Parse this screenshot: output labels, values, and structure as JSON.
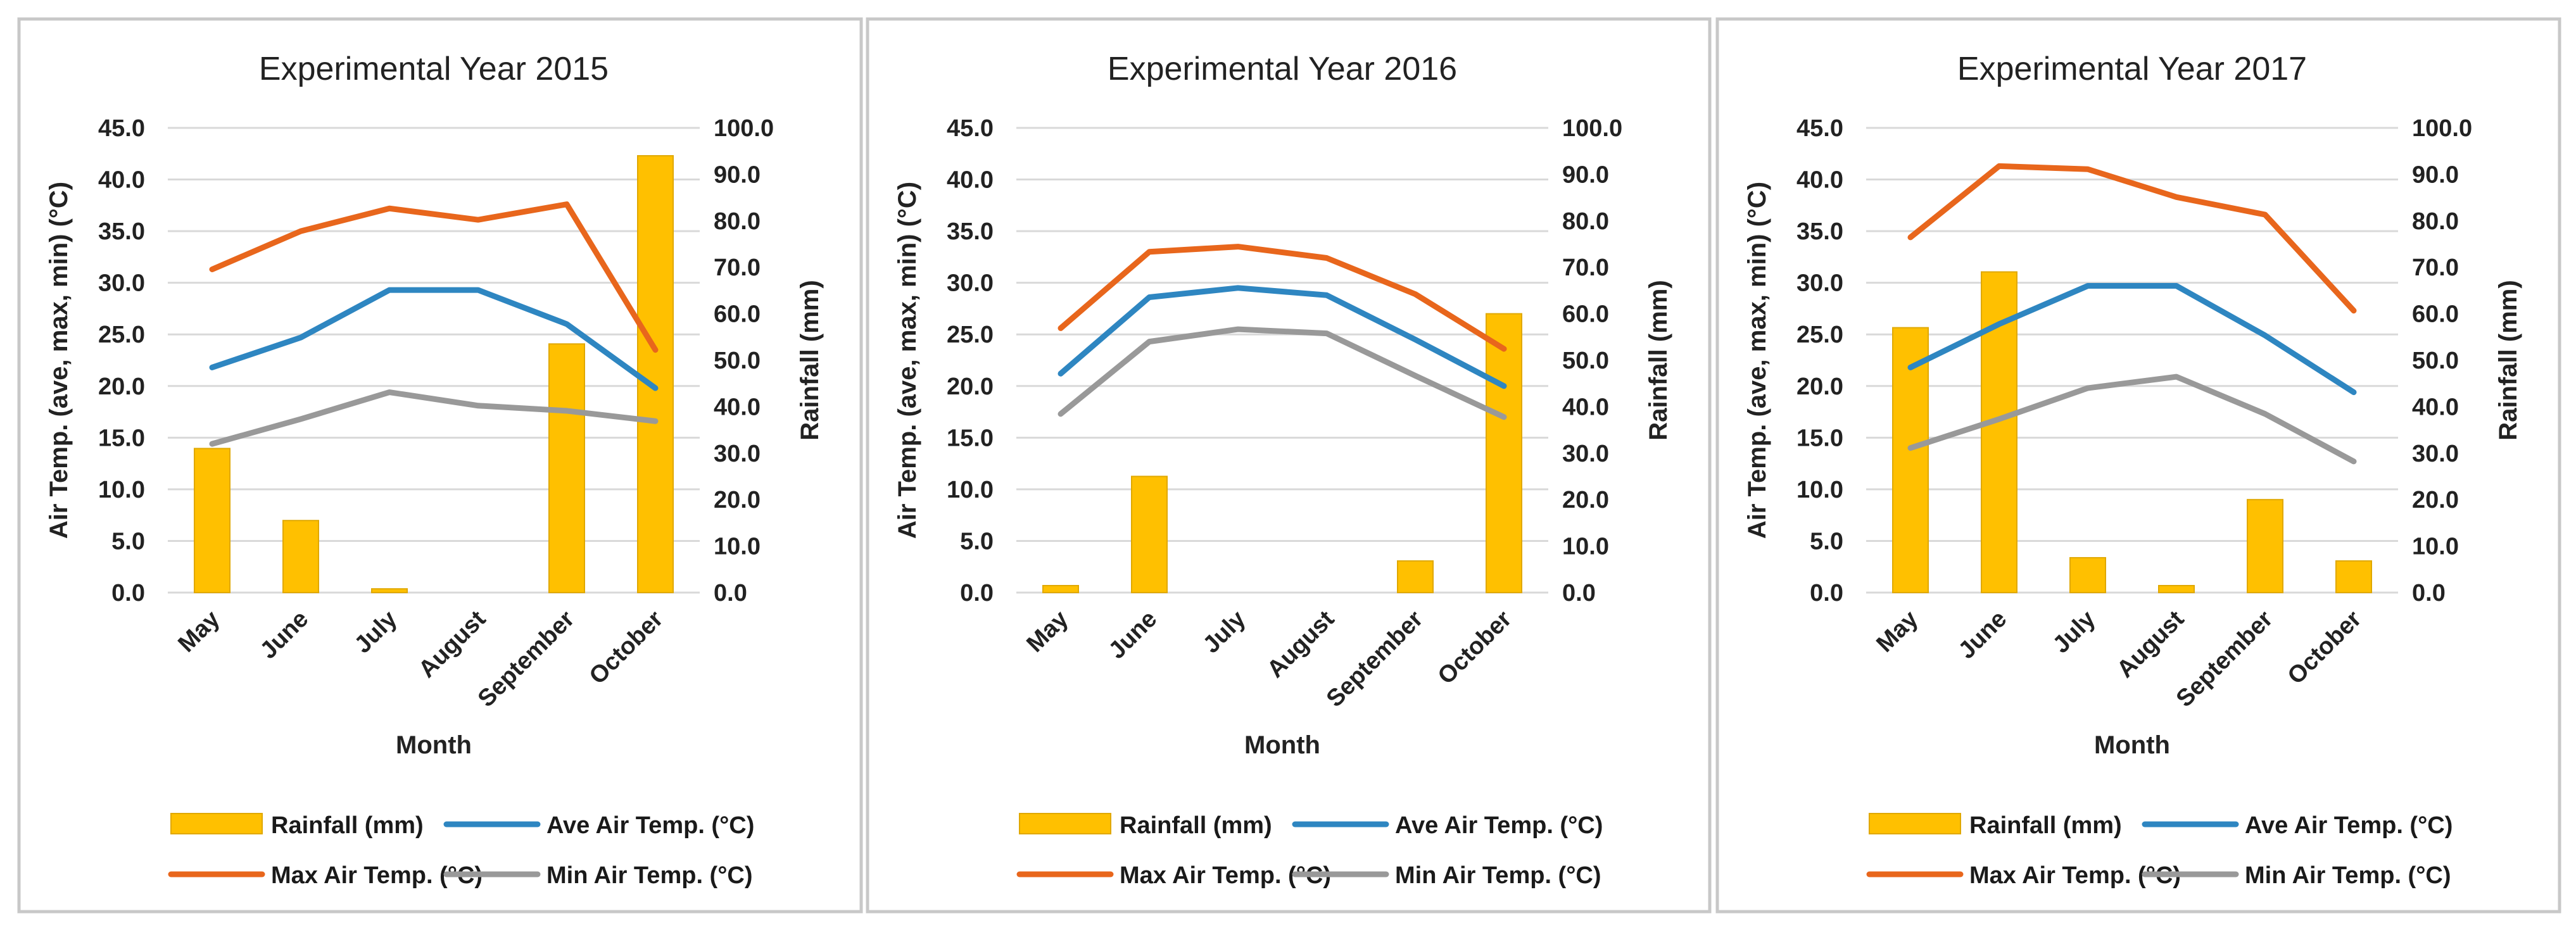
{
  "chart_data": [
    {
      "type": "bar+line",
      "title": "Experimental Year 2015",
      "xlabel": "Month",
      "ylabel": "Air Temp. (ave, max, min) (°C)",
      "y2label": "Rainfall (mm)",
      "ylim": [
        0,
        45
      ],
      "y2lim": [
        0,
        100
      ],
      "yticks": [
        "0.0",
        "5.0",
        "10.0",
        "15.0",
        "20.0",
        "25.0",
        "30.0",
        "35.0",
        "40.0",
        "45.0"
      ],
      "y2ticks": [
        "0.0",
        "10.0",
        "20.0",
        "30.0",
        "40.0",
        "50.0",
        "60.0",
        "70.0",
        "80.0",
        "90.0",
        "100.0"
      ],
      "categories": [
        "May",
        "June",
        "July",
        "August",
        "September",
        "October"
      ],
      "rainfall": [
        31.0,
        15.5,
        0.8,
        0.0,
        53.5,
        94.0
      ],
      "series": [
        {
          "name": "Ave Air Temp. (°C)",
          "values": [
            21.8,
            24.7,
            29.3,
            29.3,
            26.0,
            19.8
          ]
        },
        {
          "name": "Max Air Temp. (°C)",
          "values": [
            31.3,
            35.0,
            37.2,
            36.1,
            37.6,
            23.5
          ]
        },
        {
          "name": "Min Air Temp. (°C)",
          "values": [
            14.4,
            16.8,
            19.4,
            18.1,
            17.6,
            16.6
          ]
        }
      ],
      "legend_location": "bottom"
    },
    {
      "type": "bar+line",
      "title": "Experimental Year 2016",
      "xlabel": "Month",
      "ylabel": "Air Temp. (ave, max, min) (°C)",
      "y2label": "Rainfall (mm)",
      "ylim": [
        0,
        45
      ],
      "y2lim": [
        0,
        100
      ],
      "yticks": [
        "0.0",
        "5.0",
        "10.0",
        "15.0",
        "20.0",
        "25.0",
        "30.0",
        "35.0",
        "40.0",
        "45.0"
      ],
      "y2ticks": [
        "0.0",
        "10.0",
        "20.0",
        "30.0",
        "40.0",
        "50.0",
        "60.0",
        "70.0",
        "80.0",
        "90.0",
        "100.0"
      ],
      "categories": [
        "May",
        "June",
        "July",
        "August",
        "September",
        "October"
      ],
      "rainfall": [
        1.5,
        25.0,
        0.0,
        0.0,
        6.8,
        60.0
      ],
      "series": [
        {
          "name": "Ave Air Temp. (°C)",
          "values": [
            21.2,
            28.6,
            29.5,
            28.8,
            24.5,
            20.0
          ]
        },
        {
          "name": "Max Air Temp. (°C)",
          "values": [
            25.6,
            33.0,
            33.5,
            32.4,
            28.9,
            23.6
          ]
        },
        {
          "name": "Min Air Temp. (°C)",
          "values": [
            17.3,
            24.3,
            25.5,
            25.1,
            21.0,
            17.0
          ]
        }
      ],
      "legend_location": "bottom"
    },
    {
      "type": "bar+line",
      "title": "Experimental Year 2017",
      "xlabel": "Month",
      "ylabel": "Air Temp. (ave, max, min) (°C)",
      "y2label": "Rainfall (mm)",
      "ylim": [
        0,
        45
      ],
      "y2lim": [
        0,
        100
      ],
      "yticks": [
        "0.0",
        "5.0",
        "10.0",
        "15.0",
        "20.0",
        "25.0",
        "30.0",
        "35.0",
        "40.0",
        "45.0"
      ],
      "y2ticks": [
        "0.0",
        "10.0",
        "20.0",
        "30.0",
        "40.0",
        "50.0",
        "60.0",
        "70.0",
        "80.0",
        "90.0",
        "100.0"
      ],
      "categories": [
        "May",
        "June",
        "July",
        "August",
        "September",
        "October"
      ],
      "rainfall": [
        57.0,
        69.0,
        7.5,
        1.5,
        20.0,
        6.8
      ],
      "series": [
        {
          "name": "Ave Air Temp. (°C)",
          "values": [
            21.8,
            26.0,
            29.7,
            29.7,
            24.9,
            19.4
          ]
        },
        {
          "name": "Max Air Temp. (°C)",
          "values": [
            34.4,
            41.3,
            41.0,
            38.3,
            36.6,
            27.3
          ]
        },
        {
          "name": "Min Air Temp. (°C)",
          "values": [
            14.0,
            16.8,
            19.8,
            20.9,
            17.3,
            12.7
          ]
        }
      ],
      "legend_location": "bottom"
    }
  ],
  "legend": {
    "rainfall_label": "Rainfall (mm)",
    "ave_label": "Ave Air Temp. (°C)",
    "max_label": "Max Air Temp. (°C)",
    "min_label": "Min Air Temp. (°C)"
  },
  "colors": {
    "rainfall": "#ffc000",
    "rainfall_edge": "#e0a800",
    "ave": "#2e86c1",
    "max": "#e8661c",
    "min": "#999999",
    "grid": "#d9d9d9",
    "panel_border": "#c8c8c8",
    "text": "#222222"
  }
}
